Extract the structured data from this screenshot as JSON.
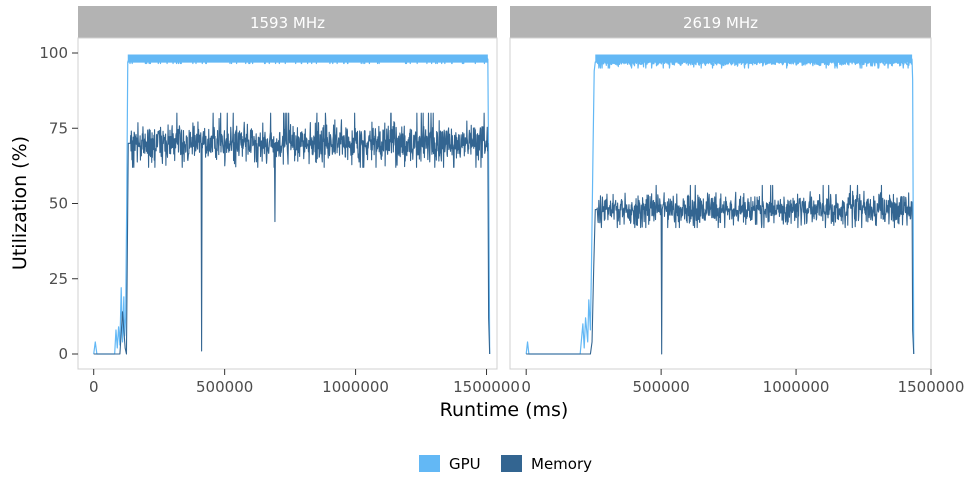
{
  "chart_data": {
    "type": "line",
    "xlabel": "Runtime (ms)",
    "ylabel": "Utilization (%)",
    "ylim": [
      0,
      100
    ],
    "yticks": [
      0,
      25,
      50,
      75,
      100
    ],
    "grid": false,
    "legend": {
      "placement": "bottom",
      "entries": [
        {
          "name": "GPU",
          "color": "#63b8f5"
        },
        {
          "name": "Memory",
          "color": "#336591"
        }
      ]
    },
    "panels": [
      {
        "strip": "1593 MHz",
        "xlim": [
          -60000,
          1540000
        ],
        "xticks": [
          0,
          500000,
          1000000,
          1500000
        ],
        "xtick_labels": [
          "0",
          "500000",
          "1000000",
          "1500000"
        ],
        "series": [
          {
            "name": "GPU",
            "x": [
              0,
              6000,
              12000,
              40000,
              80000,
              85000,
              90000,
              95000,
              100000,
              105000,
              110000,
              115000,
              118000,
              122000,
              126000,
              130000,
              135000,
              500000,
              1000000,
              1505000,
              1508000,
              1512000
            ],
            "y": [
              0,
              4,
              0,
              0,
              0,
              8,
              2,
              9,
              3,
              22,
              4,
              19,
              6,
              12,
              50,
              97,
              98,
              98,
              98,
              98,
              63,
              0
            ]
          },
          {
            "name": "Memory",
            "x": [
              0,
              100000,
              110000,
              120000,
              125000,
              128000,
              132000,
              140000,
              410000,
              412000,
              414000,
              690000,
              692000,
              694000,
              1505000,
              1508000,
              1512000
            ],
            "y": [
              0,
              0,
              14,
              2,
              0,
              30,
              70,
              70,
              70,
              1,
              70,
              70,
              44,
              70,
              70,
              12,
              0
            ],
            "noise_range": [
              62,
              82
            ]
          }
        ]
      },
      {
        "strip": "2619 MHz",
        "xlim": [
          -60000,
          1500000
        ],
        "xticks": [
          0,
          500000,
          1000000,
          1500000
        ],
        "xtick_labels": [
          "0",
          "500000",
          "1000000",
          "1500000"
        ],
        "series": [
          {
            "name": "GPU",
            "x": [
              0,
              5000,
              10000,
              200000,
              210000,
              215000,
              220000,
              228000,
              232000,
              238000,
              242000,
              248000,
              252000,
              256000,
              262000,
              700000,
              1430000,
              1432000,
              1436000
            ],
            "y": [
              0,
              4,
              0,
              0,
              10,
              2,
              12,
              4,
              18,
              8,
              30,
              70,
              94,
              97,
              97,
              97,
              97,
              91,
              0
            ],
            "noise_range": [
              95,
              99
            ]
          },
          {
            "name": "Memory",
            "x": [
              0,
              238000,
              244000,
              250000,
              256000,
              262000,
              500000,
              502000,
              504000,
              1430000,
              1432000,
              1436000
            ],
            "y": [
              0,
              0,
              4,
              28,
              48,
              48,
              48,
              0,
              48,
              48,
              8,
              0
            ],
            "noise_range": [
              42,
              58
            ]
          }
        ]
      }
    ]
  }
}
